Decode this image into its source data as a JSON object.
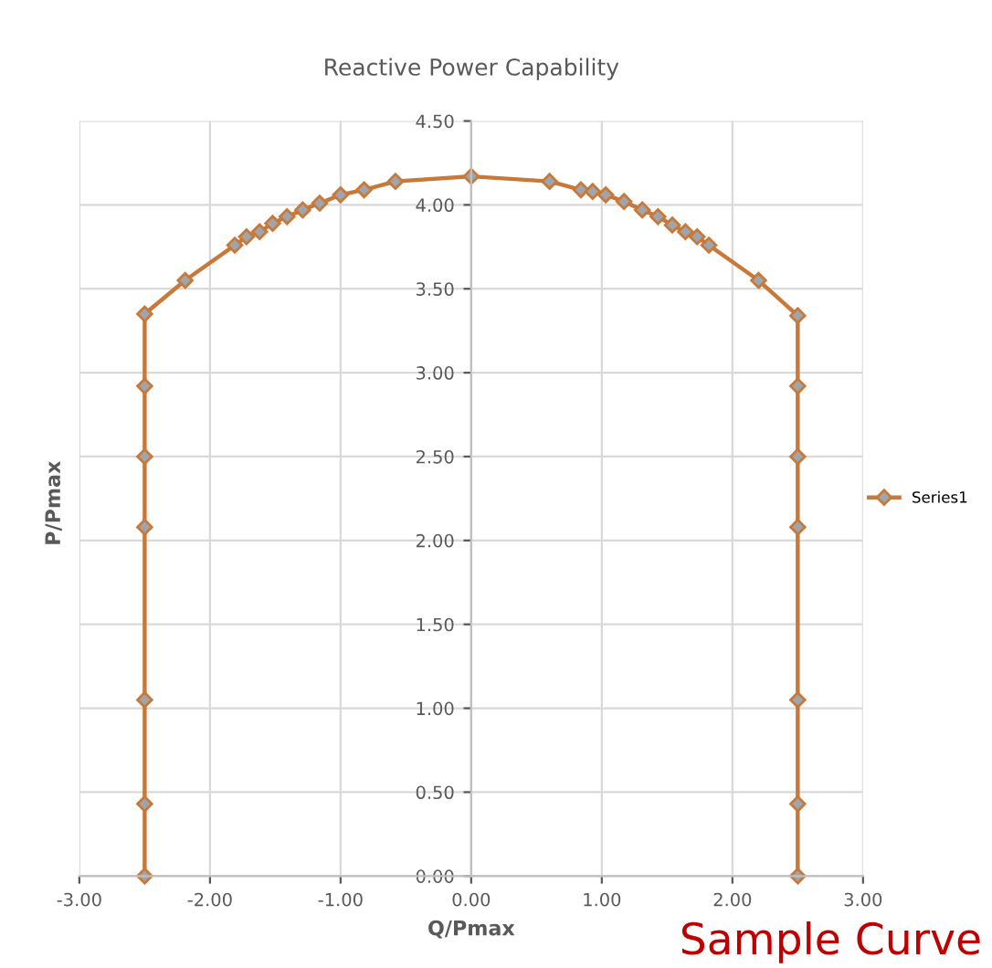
{
  "chart_data": {
    "type": "line",
    "title": "Reactive Power Capability",
    "xlabel": "Q/Pmax",
    "ylabel": "P/Pmax",
    "annotations": [
      "Sample Curve"
    ],
    "series": [
      {
        "name": "Series1",
        "color": "#c8793a",
        "x": [
          -2.5,
          -2.5,
          -2.5,
          -2.5,
          -2.5,
          -2.5,
          -2.5,
          -2.19,
          -1.81,
          -1.72,
          -1.62,
          -1.52,
          -1.41,
          -1.29,
          -1.16,
          -1.0,
          -0.82,
          -0.58,
          0,
          0.6,
          0.84,
          0.93,
          1.03,
          1.17,
          1.31,
          1.43,
          1.54,
          1.64,
          1.73,
          1.82,
          2.2,
          2.5,
          2.5,
          2.5,
          2.5,
          2.5,
          2.5,
          2.5
        ],
        "values": [
          0,
          0.43,
          1.05,
          2.08,
          2.5,
          2.92,
          3.35,
          3.55,
          3.76,
          3.81,
          3.84,
          3.89,
          3.93,
          3.97,
          4.01,
          4.06,
          4.09,
          4.14,
          4.17,
          4.14,
          4.09,
          4.08,
          4.06,
          4.02,
          3.97,
          3.93,
          3.88,
          3.84,
          3.81,
          3.76,
          3.55,
          3.34,
          2.92,
          2.5,
          2.08,
          1.05,
          0.43,
          0
        ]
      }
    ],
    "xlim": [
      -3,
      3
    ],
    "ylim": [
      0,
      4.5
    ],
    "xticks": [
      {
        "value": -3,
        "label": "-3.00"
      },
      {
        "value": -2,
        "label": "-2.00"
      },
      {
        "value": -1,
        "label": "-1.00"
      },
      {
        "value": 0,
        "label": "0.00"
      },
      {
        "value": 1,
        "label": "1.00"
      },
      {
        "value": 2,
        "label": "2.00"
      },
      {
        "value": 3,
        "label": "3.00"
      }
    ],
    "yticks": [
      {
        "value": 0,
        "label": "0.00"
      },
      {
        "value": 0.5,
        "label": "0.50"
      },
      {
        "value": 1,
        "label": "1.00"
      },
      {
        "value": 1.5,
        "label": "1.50"
      },
      {
        "value": 2,
        "label": "2.00"
      },
      {
        "value": 2.5,
        "label": "2.50"
      },
      {
        "value": 3,
        "label": "3.00"
      },
      {
        "value": 3.5,
        "label": "3.50"
      },
      {
        "value": 4,
        "label": "4.00"
      },
      {
        "value": 4.5,
        "label": "4.50"
      }
    ],
    "grid": true,
    "legend": "right",
    "marker": "diamond",
    "line_style": "solid"
  }
}
